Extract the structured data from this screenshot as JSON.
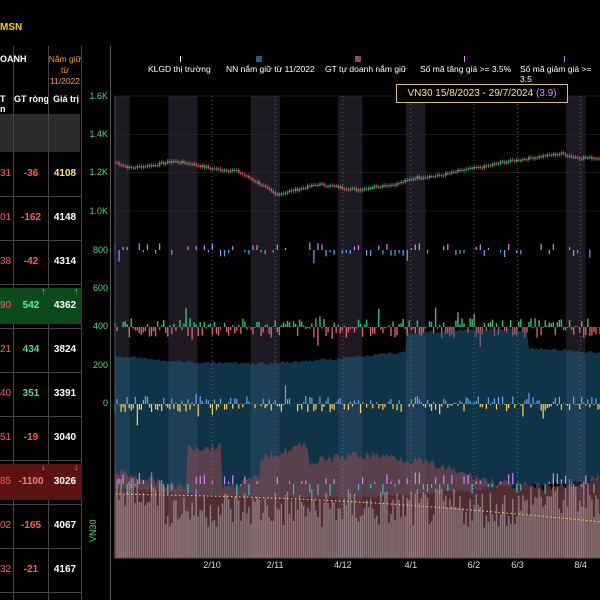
{
  "header": {
    "code": "MSN"
  },
  "table": {
    "headers": {
      "doanh": "OANH",
      "hold_note": "Nắm giữ từ 11/2022",
      "gt_prefix": "T",
      "gt_rong": "GT ròng",
      "gia_tri": "Giá trị",
      "sub": "n"
    },
    "rows": [
      {
        "c1": "31",
        "gt_rong": "-36",
        "gia_tri": "4108",
        "c1_color": "#ff5a5a",
        "gt_color": "#ff5a5a",
        "gv_color": "#ffe680",
        "bg": "",
        "arrow": ""
      },
      {
        "c1": "01",
        "gt_rong": "-162",
        "gia_tri": "4148",
        "c1_color": "#ff5a5a",
        "gt_color": "#ff5a5a",
        "gv_color": "#ffffff",
        "bg": "",
        "arrow": ""
      },
      {
        "c1": "38",
        "gt_rong": "-42",
        "gia_tri": "4314",
        "c1_color": "#ff5a5a",
        "gt_color": "#ff5a5a",
        "gv_color": "#ffffff",
        "bg": "",
        "arrow": ""
      },
      {
        "c1": "90",
        "gt_rong": "542",
        "gia_tri": "4362",
        "c1_color": "#ff5a5a",
        "gt_color": "#4dff8a",
        "gv_color": "#ffffff",
        "bg": "#0b4a1c",
        "arrow": "↑"
      },
      {
        "c1": "21",
        "gt_rong": "434",
        "gia_tri": "3824",
        "c1_color": "#ff5a5a",
        "gt_color": "#4dd98a",
        "gv_color": "#ffffff",
        "bg": "",
        "arrow": ""
      },
      {
        "c1": "40",
        "gt_rong": "351",
        "gia_tri": "3391",
        "c1_color": "#ff5a5a",
        "gt_color": "#4dd98a",
        "gv_color": "#ffffff",
        "bg": "",
        "arrow": ""
      },
      {
        "c1": "51",
        "gt_rong": "-19",
        "gia_tri": "3040",
        "c1_color": "#ff5a5a",
        "gt_color": "#ff5a5a",
        "gv_color": "#ffffff",
        "bg": "",
        "arrow": ""
      },
      {
        "c1": "85",
        "gt_rong": "-1100",
        "gia_tri": "3026",
        "c1_color": "#ff5a5a",
        "gt_color": "#ff7a7a",
        "gv_color": "#ffffff",
        "bg": "#5a1212",
        "arrow": "↓"
      },
      {
        "c1": "02",
        "gt_rong": "-165",
        "gia_tri": "4067",
        "c1_color": "#ff5a5a",
        "gt_color": "#ff5a5a",
        "gv_color": "#ffffff",
        "bg": "",
        "arrow": ""
      },
      {
        "c1": "32",
        "gt_rong": "-21",
        "gia_tri": "4167",
        "c1_color": "#ff5a5a",
        "gt_color": "#ff5a5a",
        "gv_color": "#ffffff",
        "bg": "",
        "arrow": ""
      }
    ]
  },
  "colors": {
    "up": "#2ec27e",
    "down": "#e05a6a",
    "nn": "#1d5e82",
    "gt": "#8a4a52",
    "pink": "#e07aff",
    "blue": "#5aa8ff",
    "yellow": "#ffd84a"
  },
  "chart_data": {
    "type": "line",
    "title": "VN30 15/8/2023 - 29/7/2024",
    "title_value": "(3.9)",
    "y_axis_label": "VN30",
    "legend": [
      {
        "label": "KLGD thị trường",
        "color": "#ffffff"
      },
      {
        "label": "NN nắm giữ từ 11/2022",
        "color": "#1d5e82"
      },
      {
        "label": "GT tự doanh nắm giữ",
        "color": "#8a4a52"
      },
      {
        "label": "Số mã tăng giá >= 3.5%",
        "color": "#e07aff"
      },
      {
        "label": "Số mã giảm giá >= 3.5",
        "color": "#5aa8ff"
      }
    ],
    "y_ticks_index": [
      "1.6K",
      "1.4K",
      "1.2K",
      "1.0K"
    ],
    "y_ticks_index_values": [
      1600,
      1400,
      1200,
      1000
    ],
    "y_ticks_flow": [
      "800",
      "600",
      "400",
      "200",
      "0"
    ],
    "y_ticks_flow_values": [
      800,
      600,
      400,
      200,
      0
    ],
    "x_ticks": [
      {
        "label": "2/10",
        "frac": 0.2
      },
      {
        "label": "2/11",
        "frac": 0.33
      },
      {
        "label": "4/12",
        "frac": 0.47
      },
      {
        "label": "4/1",
        "frac": 0.61
      },
      {
        "label": "6/2",
        "frac": 0.74
      },
      {
        "label": "6/3",
        "frac": 0.83
      },
      {
        "label": "8/4",
        "frac": 0.96
      }
    ],
    "index_keypoints": [
      [
        0,
        1255
      ],
      [
        0.03,
        1225
      ],
      [
        0.08,
        1240
      ],
      [
        0.12,
        1260
      ],
      [
        0.16,
        1245
      ],
      [
        0.2,
        1220
      ],
      [
        0.25,
        1210
      ],
      [
        0.3,
        1140
      ],
      [
        0.33,
        1085
      ],
      [
        0.38,
        1115
      ],
      [
        0.42,
        1140
      ],
      [
        0.46,
        1125
      ],
      [
        0.5,
        1110
      ],
      [
        0.54,
        1130
      ],
      [
        0.58,
        1140
      ],
      [
        0.62,
        1175
      ],
      [
        0.67,
        1185
      ],
      [
        0.72,
        1215
      ],
      [
        0.76,
        1230
      ],
      [
        0.8,
        1255
      ],
      [
        0.84,
        1270
      ],
      [
        0.88,
        1285
      ],
      [
        0.92,
        1300
      ],
      [
        0.95,
        1280
      ],
      [
        1.0,
        1275
      ]
    ]
  }
}
